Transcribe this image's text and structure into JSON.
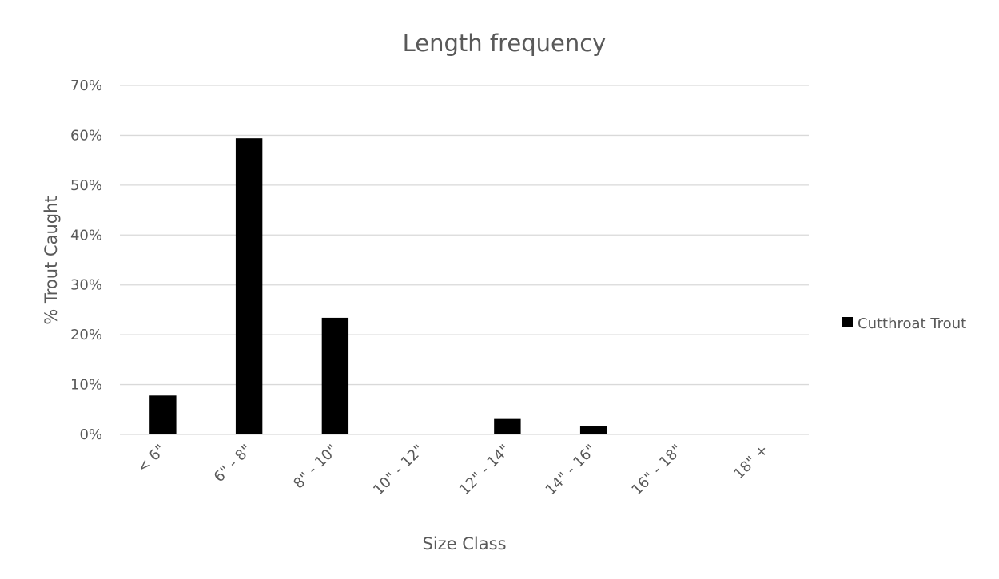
{
  "chart_data": {
    "type": "bar",
    "title": "Length frequency",
    "xlabel": "Size Class",
    "ylabel": "% Trout Caught",
    "categories": [
      "< 6\"",
      "6\" - 8\"",
      "8\" - 10\"",
      "10\" - 12\"",
      "12\" - 14\"",
      "14\" - 16\"",
      "16\" - 18\"",
      "18\" +"
    ],
    "series": [
      {
        "name": "Cutthroat Trout",
        "color": "#000000",
        "values": [
          7.8,
          59.4,
          23.4,
          0,
          3.1,
          1.6,
          0,
          0
        ]
      }
    ],
    "ylim": [
      0,
      70
    ],
    "yticks": [
      "0%",
      "10%",
      "20%",
      "30%",
      "40%",
      "50%",
      "60%",
      "70%"
    ],
    "grid": true,
    "legend_position": "right"
  }
}
